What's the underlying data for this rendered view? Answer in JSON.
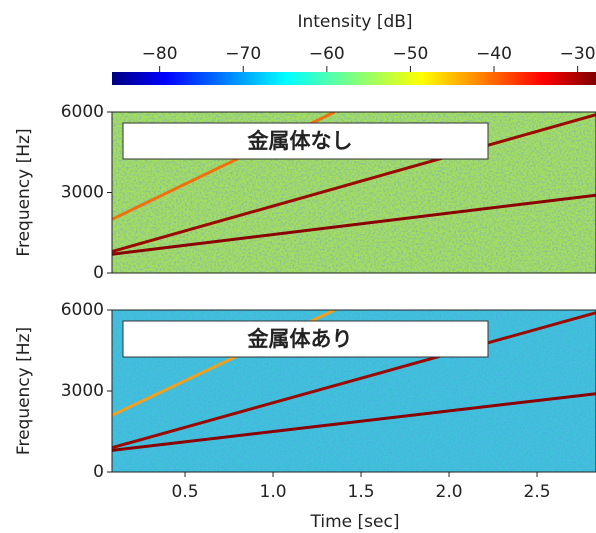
{
  "colorbar": {
    "label": "Intensity [dB]",
    "clim": [
      -85.7,
      -27.8
    ],
    "ticks": [
      {
        "value": -80,
        "label": "−80"
      },
      {
        "value": -70,
        "label": "−70"
      },
      {
        "value": -60,
        "label": "−60"
      },
      {
        "value": -50,
        "label": "−50"
      },
      {
        "value": -40,
        "label": "−40"
      },
      {
        "value": -30,
        "label": "−30"
      }
    ]
  },
  "chart_data": [
    {
      "type": "spectrogram",
      "annotation": "金属体なし",
      "ylabel": "Frequency [Hz]",
      "background_color": "#a6df5c",
      "xlim": [
        0.085,
        2.835
      ],
      "ylim": [
        0,
        6000
      ],
      "yticks": [
        0,
        3000,
        6000
      ],
      "series": [
        {
          "color": "#8b0000",
          "x": [
            0.085,
            2.835
          ],
          "values": [
            700,
            2900
          ]
        },
        {
          "color": "#9a0a00",
          "x": [
            0.085,
            2.835
          ],
          "values": [
            800,
            5900
          ]
        },
        {
          "color": "#f07010",
          "x": [
            0.085,
            1.35
          ],
          "values": [
            2000,
            6000
          ]
        }
      ]
    },
    {
      "type": "spectrogram",
      "annotation": "金属体あり",
      "ylabel": "Frequency [Hz]",
      "xlabel": "Time [sec]",
      "background_color": "#3fc3d8",
      "xlim": [
        0.085,
        2.835
      ],
      "ylim": [
        0,
        6000
      ],
      "yticks": [
        0,
        3000,
        6000
      ],
      "xticks": [
        0.5,
        {
          "value": 1.0,
          "label": "1.0"
        },
        1.5,
        {
          "value": 2.0,
          "label": "2.0"
        },
        2.5
      ],
      "series": [
        {
          "color": "#8b0000",
          "x": [
            0.085,
            2.835
          ],
          "values": [
            800,
            2900
          ]
        },
        {
          "color": "#9a0a00",
          "x": [
            0.085,
            2.835
          ],
          "values": [
            900,
            5900
          ]
        },
        {
          "color": "#f0a020",
          "x": [
            0.085,
            1.35
          ],
          "values": [
            2100,
            6000
          ]
        }
      ]
    }
  ]
}
